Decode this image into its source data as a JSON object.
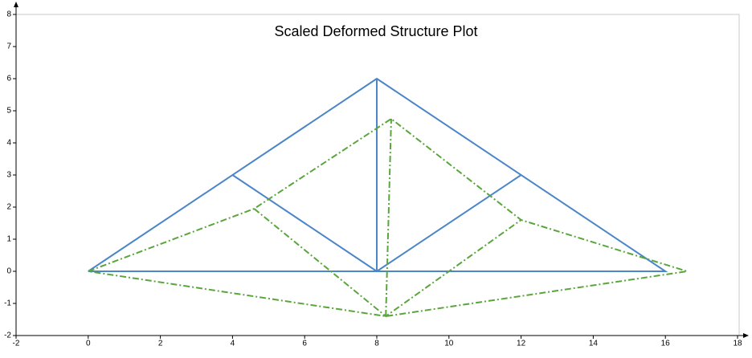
{
  "chart_data": {
    "type": "line",
    "title": "Scaled Deformed Structure Plot",
    "series": [
      {
        "color": "#4a86c8",
        "dash": "solid",
        "x": [
          0,
          8,
          16,
          0,
          null,
          8,
          8,
          null,
          4,
          8,
          12
        ],
        "values": [
          0,
          6,
          0,
          0,
          null,
          0,
          6,
          null,
          3,
          0,
          3
        ]
      },
      {
        "color": "#5aa63c",
        "dash": "dashdot",
        "x": [
          0,
          4.6,
          8.4,
          12,
          16.6,
          8.25,
          0,
          null,
          8.25,
          8.4,
          null,
          4.6,
          8.25,
          12
        ],
        "values": [
          0,
          1.95,
          4.75,
          1.6,
          0,
          -1.4,
          0,
          null,
          -1.4,
          4.75,
          null,
          1.95,
          -1.4,
          1.6
        ]
      }
    ],
    "xlim": [
      -2,
      18
    ],
    "ylim": [
      -2,
      8
    ],
    "xticks": [
      -2,
      0,
      2,
      4,
      6,
      8,
      10,
      12,
      14,
      16,
      18
    ],
    "yticks": [
      -2,
      -1,
      0,
      1,
      2,
      3,
      4,
      5,
      6,
      7,
      8
    ],
    "grid": false
  }
}
